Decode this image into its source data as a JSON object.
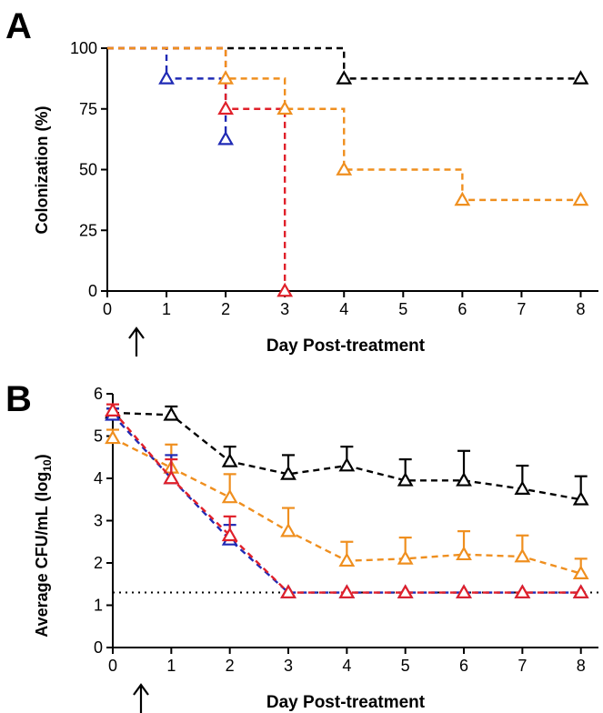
{
  "colors": {
    "black": "#000000",
    "blue": "#1f2ab5",
    "orange": "#ef8f1f",
    "red": "#e0202a"
  },
  "chart_data": [
    {
      "panel": "A",
      "type": "line",
      "step": true,
      "xlabel": "Day Post-treatment",
      "ylabel": "Colonization (%)",
      "xlim": [
        0,
        8.3
      ],
      "ylim": [
        0,
        100
      ],
      "xticks": [
        0,
        1,
        2,
        3,
        4,
        5,
        6,
        7,
        8
      ],
      "yticks": [
        0,
        25,
        50,
        75,
        100
      ],
      "series": [
        {
          "color": "black",
          "points": [
            [
              0,
              100
            ],
            [
              4,
              87.5
            ],
            [
              8,
              87.5
            ]
          ]
        },
        {
          "color": "blue",
          "points": [
            [
              0,
              100
            ],
            [
              1,
              87.5
            ],
            [
              2,
              62.5
            ]
          ]
        },
        {
          "color": "red",
          "points": [
            [
              0,
              100
            ],
            [
              2,
              75
            ],
            [
              3,
              0
            ]
          ]
        },
        {
          "color": "orange",
          "points": [
            [
              0,
              100
            ],
            [
              2,
              87.5
            ],
            [
              3,
              75
            ],
            [
              4,
              50
            ],
            [
              6,
              37.5
            ],
            [
              8,
              37.5
            ]
          ]
        }
      ]
    },
    {
      "panel": "B",
      "type": "line",
      "xlabel": "Day Post-treatment",
      "ylabel_main": "Average CFU/mL (log",
      "ylabel_sub": "10",
      "ylabel_close": ")",
      "xlim": [
        0,
        8.3
      ],
      "ylim": [
        0,
        6
      ],
      "xticks": [
        0,
        1,
        2,
        3,
        4,
        5,
        6,
        7,
        8
      ],
      "yticks": [
        0,
        1,
        2,
        3,
        4,
        5,
        6
      ],
      "detection_limit": 1.3,
      "series": [
        {
          "color": "black",
          "x": [
            0,
            1,
            2,
            3,
            4,
            5,
            6,
            7,
            8
          ],
          "y": [
            5.55,
            5.5,
            4.4,
            4.1,
            4.3,
            3.95,
            3.95,
            3.75,
            3.5
          ],
          "err": [
            0.1,
            0.2,
            0.35,
            0.45,
            0.45,
            0.5,
            0.7,
            0.55,
            0.55
          ]
        },
        {
          "color": "orange",
          "x": [
            0,
            1,
            2,
            3,
            4,
            5,
            6,
            7,
            8
          ],
          "y": [
            4.95,
            4.25,
            3.55,
            2.75,
            2.05,
            2.1,
            2.2,
            2.15,
            1.75
          ],
          "err": [
            0.2,
            0.55,
            0.55,
            0.55,
            0.45,
            0.5,
            0.55,
            0.5,
            0.35
          ]
        },
        {
          "color": "blue",
          "x": [
            0,
            1,
            2,
            3,
            4,
            5,
            6,
            7,
            8
          ],
          "y": [
            5.5,
            4.0,
            2.55,
            1.3,
            1.3,
            1.3,
            1.3,
            1.3,
            1.3
          ],
          "err": [
            0.15,
            0.55,
            0.35,
            0,
            0,
            0,
            0,
            0,
            0
          ]
        },
        {
          "color": "red",
          "x": [
            0,
            1,
            2,
            3,
            4,
            5,
            6,
            7,
            8
          ],
          "y": [
            5.6,
            4.0,
            2.65,
            1.3,
            1.3,
            1.3,
            1.3,
            1.3,
            1.3
          ],
          "err": [
            0.15,
            0.45,
            0.45,
            0,
            0,
            0,
            0,
            0,
            0
          ]
        }
      ]
    }
  ]
}
